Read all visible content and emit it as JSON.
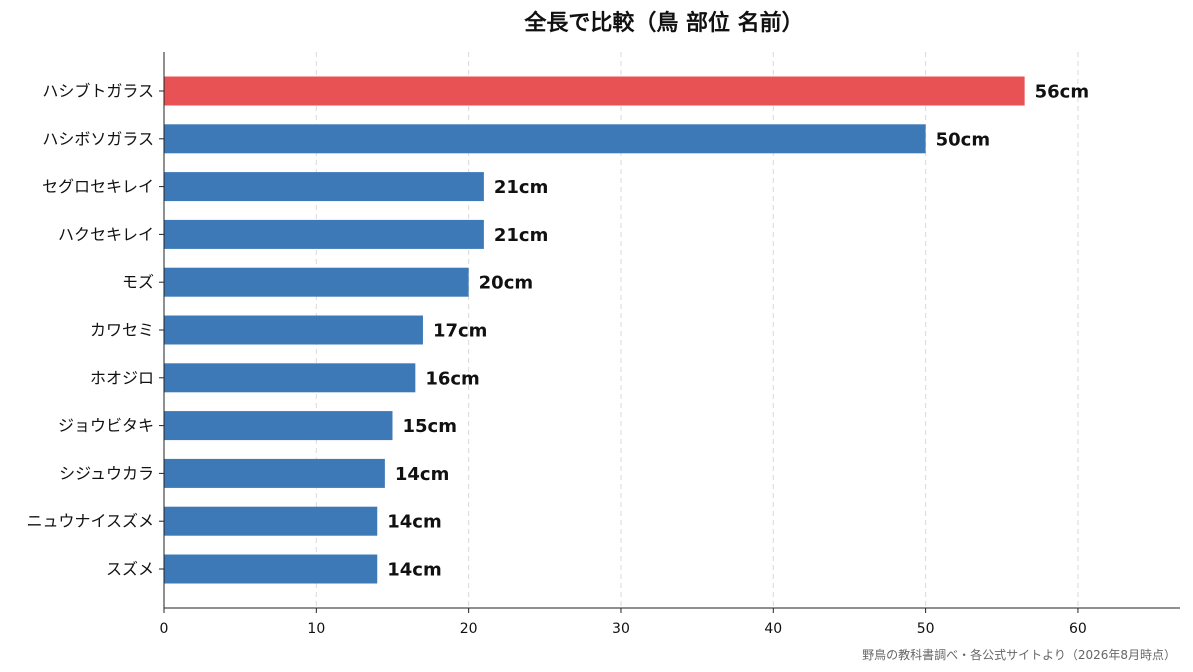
{
  "chart_data": {
    "type": "bar",
    "orientation": "horizontal",
    "title": "全長で比較（鳥 部位 名前）",
    "categories": [
      "ハシブトガラス",
      "ハシボソガラス",
      "セグロセキレイ",
      "ハクセキレイ",
      "モズ",
      "カワセミ",
      "ホオジロ",
      "ジョウビタキ",
      "シジュウカラ",
      "ニュウナイスズメ",
      "スズメ"
    ],
    "values": [
      56.5,
      50,
      21,
      21,
      20,
      17,
      16.5,
      15,
      14.5,
      14,
      14
    ],
    "data_labels": [
      "56cm",
      "50cm",
      "21cm",
      "21cm",
      "20cm",
      "17cm",
      "16cm",
      "15cm",
      "14cm",
      "14cm",
      "14cm"
    ],
    "xlim": [
      0,
      66.7
    ],
    "xticks": [
      0,
      10,
      20,
      30,
      40,
      50,
      60
    ],
    "xlabel": "",
    "ylabel": "",
    "grid": "vertical dashed",
    "colors": {
      "highlight": "#e85255",
      "default": "#3e79b7"
    },
    "highlight_index": 0,
    "source_note": "野鳥の教科書調べ・各公式サイトより（2026年8月時点）"
  }
}
